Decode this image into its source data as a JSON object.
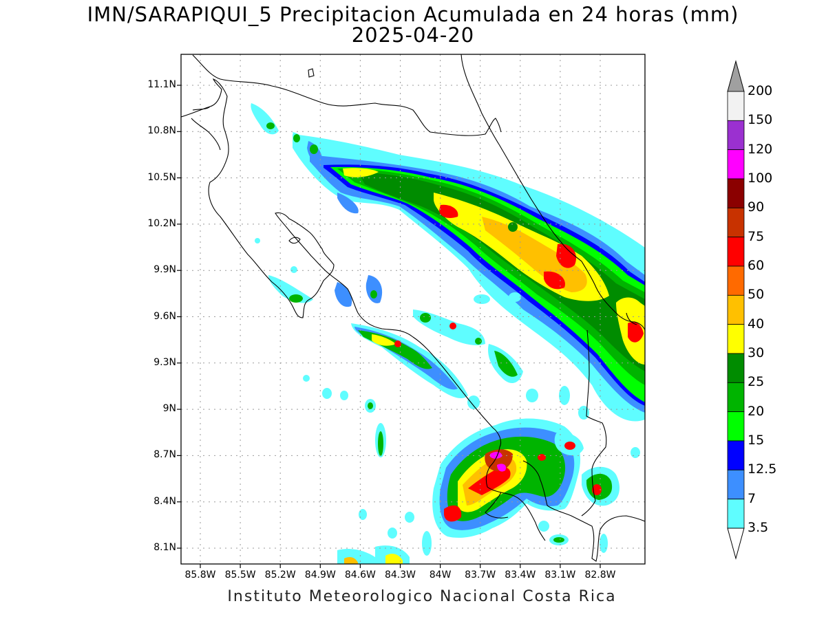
{
  "title": {
    "line1": "IMN/SARAPIQUI_5 Precipitacion Acumulada en 24 horas (mm)",
    "line2": "2025-04-20"
  },
  "footer": "Instituto Meteorologico Nacional Costa Rica",
  "axes": {
    "lat_ticks": [
      "11.1N",
      "10.8N",
      "10.5N",
      "10.2N",
      "9.9N",
      "9.6N",
      "9.3N",
      "9N",
      "8.7N",
      "8.4N",
      "8.1N"
    ],
    "lon_ticks": [
      "85.8W",
      "85.5W",
      "85.2W",
      "84.9W",
      "84.6W",
      "84.3W",
      "84W",
      "83.7W",
      "83.4W",
      "83.1W",
      "82.8W"
    ],
    "lat_values": [
      11.1,
      10.8,
      10.5,
      10.2,
      9.9,
      9.6,
      9.3,
      9.0,
      8.7,
      8.4,
      8.1
    ],
    "lon_values": [
      -85.8,
      -85.5,
      -85.2,
      -84.9,
      -84.6,
      -84.3,
      -84.0,
      -83.7,
      -83.4,
      -83.1,
      -82.8
    ],
    "lat_range": [
      8.0,
      11.3
    ],
    "lon_range": [
      -86.0,
      -83.0
    ],
    "grid": "dotted"
  },
  "colorbar": {
    "labels": [
      "200",
      "150",
      "120",
      "100",
      "90",
      "75",
      "60",
      "50",
      "40",
      "30",
      "25",
      "20",
      "15",
      "12.5",
      "7",
      "3.5"
    ],
    "colors": [
      "#f2f2f2",
      "#9b30d0",
      "#ff00ff",
      "#8b0000",
      "#c83200",
      "#ff0000",
      "#ff6a00",
      "#ffc000",
      "#ffff00",
      "#008c00",
      "#00b400",
      "#00ff00",
      "#0000ff",
      "#3d8fff",
      "#5ffdff"
    ],
    "over_color": "#a0a0a0",
    "under_color": "#ffffff"
  },
  "precip_levels": {
    "lt35": "#ffffff",
    "c35": "#5ffdff",
    "c7": "#3d8fff",
    "c125": "#0000ff",
    "c15": "#00ff00",
    "c20": "#00b400",
    "c25": "#008c00",
    "c30": "#ffff00",
    "c40": "#ffc000",
    "c50": "#ff6a00",
    "c60": "#ff0000",
    "c75": "#c83200",
    "c90": "#8b0000",
    "c100": "#ff00ff",
    "c120": "#9b30d0"
  }
}
